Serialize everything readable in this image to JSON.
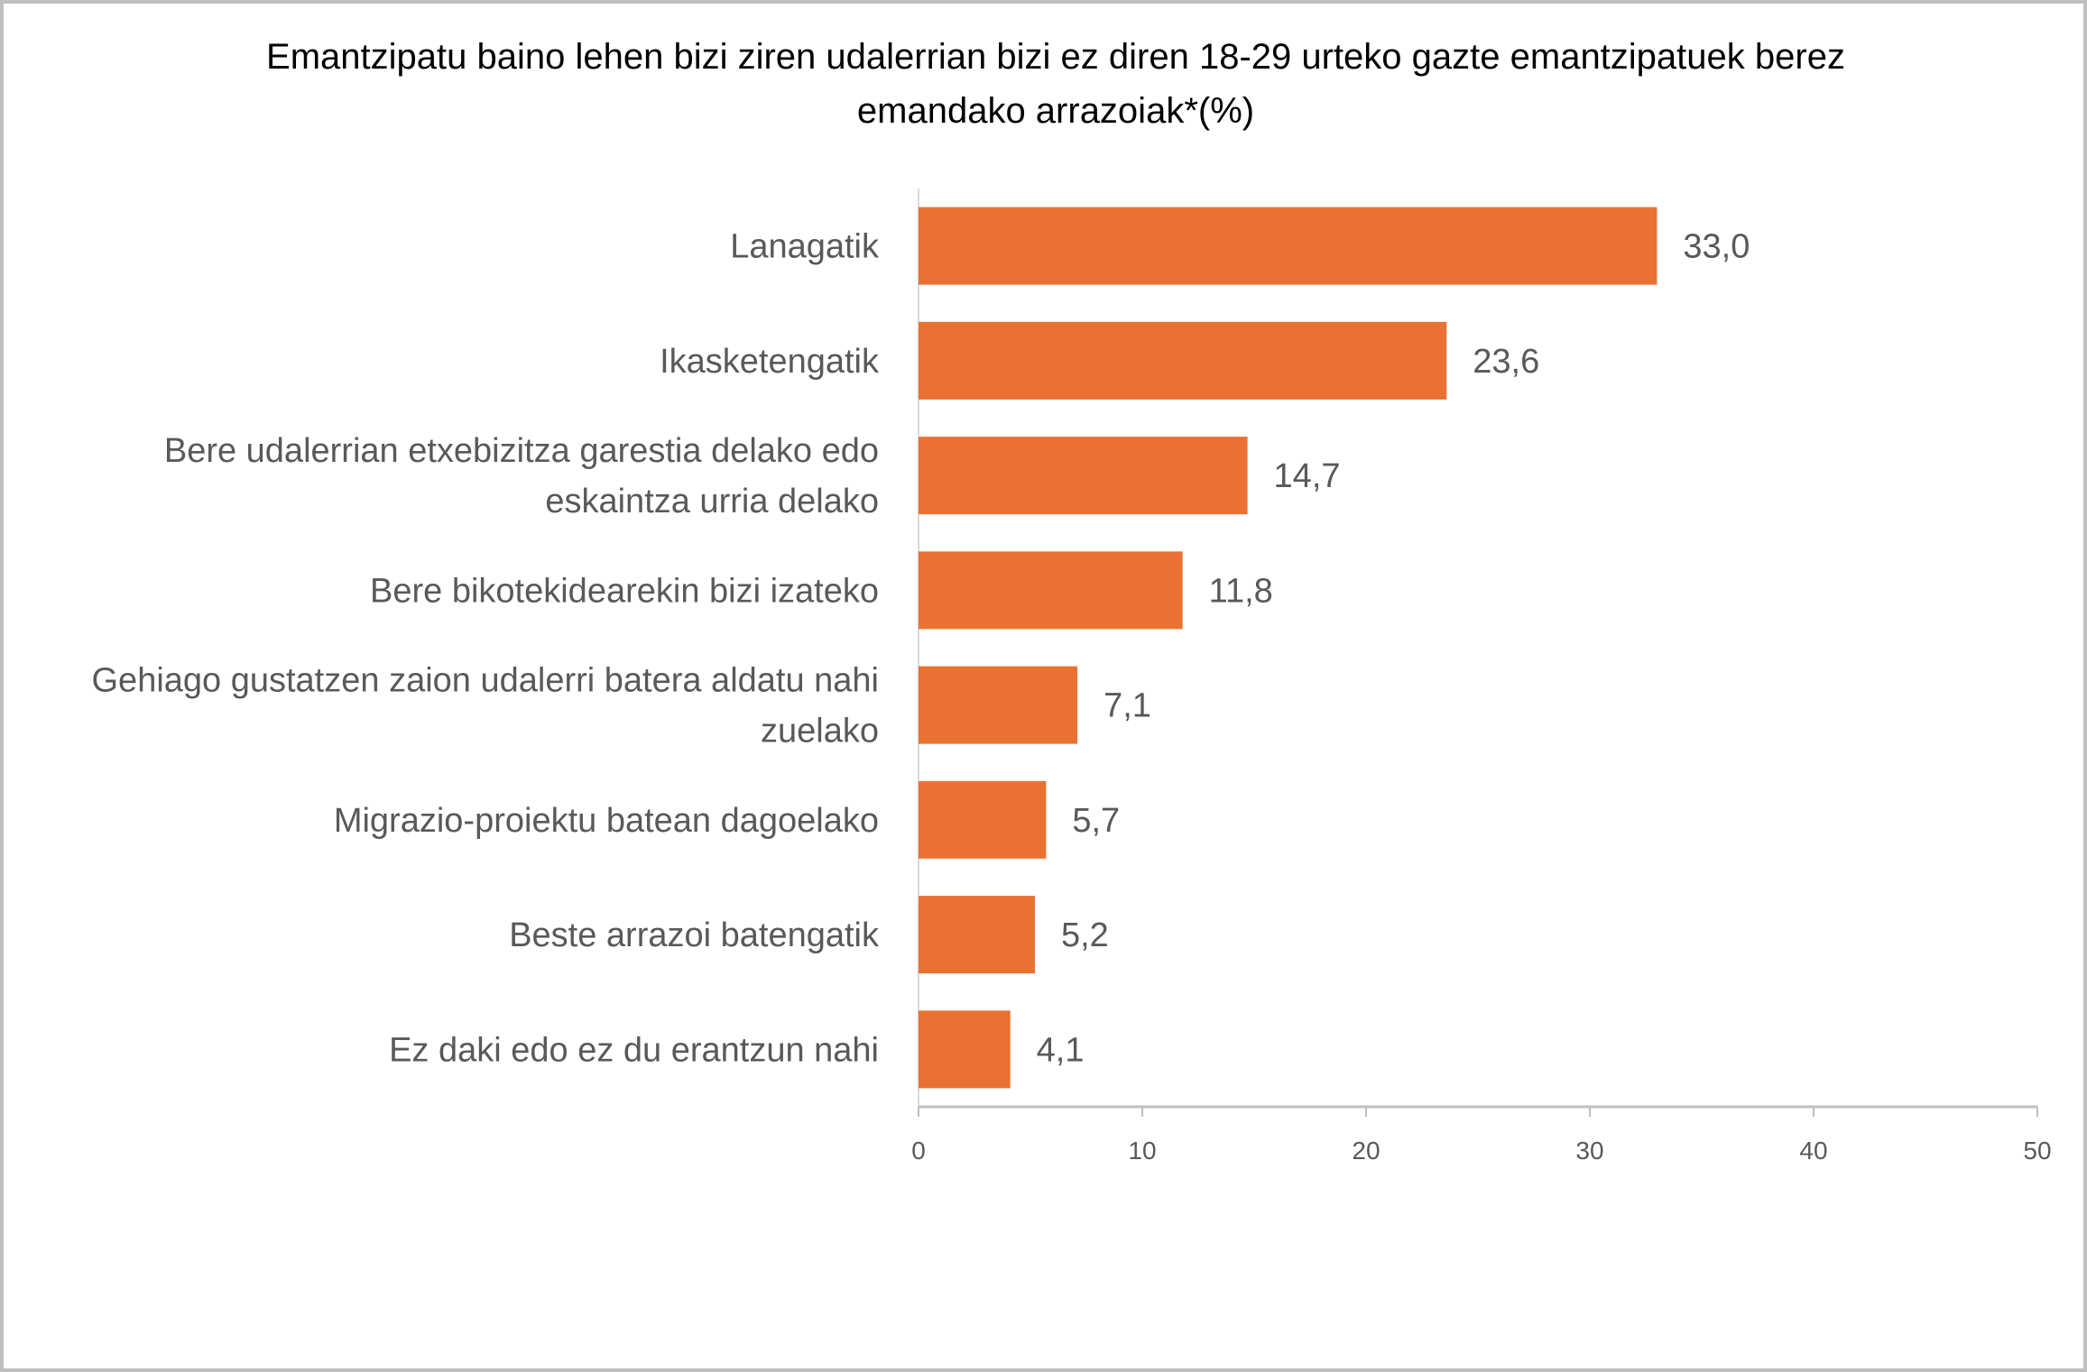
{
  "chart_data": {
    "type": "bar",
    "orientation": "horizontal",
    "title_lines": [
      "Emantzipatu baino lehen bizi ziren udalerrian bizi ez diren 18-29 urteko gazte emantzipatuek berez",
      "emandako arrazoiak*(%)"
    ],
    "categories": [
      [
        "Lanagatik"
      ],
      [
        "Ikasketengatik"
      ],
      [
        "Bere udalerrian etxebizitza garestia delako edo",
        "eskaintza urria delako"
      ],
      [
        "Bere bikotekidearekin bizi izateko"
      ],
      [
        "Gehiago gustatzen zaion udalerri batera aldatu nahi",
        "zuelako"
      ],
      [
        "Migrazio-proiektu batean dagoelako"
      ],
      [
        "Beste arrazoi batengatik"
      ],
      [
        "Ez daki edo ez du erantzun nahi"
      ]
    ],
    "values": [
      33.0,
      23.6,
      14.7,
      11.8,
      7.1,
      5.7,
      5.2,
      4.1
    ],
    "value_labels": [
      "33,0",
      "23,6",
      "14,7",
      "11,8",
      "7,1",
      "5,7",
      "5,2",
      "4,1"
    ],
    "xlim": [
      0,
      50
    ],
    "x_ticks": [
      "0",
      "10",
      "20",
      "30",
      "40",
      "50"
    ],
    "xlabel": "",
    "ylabel": "",
    "grid": false,
    "legend": "none",
    "bar_color": "#E97132"
  }
}
